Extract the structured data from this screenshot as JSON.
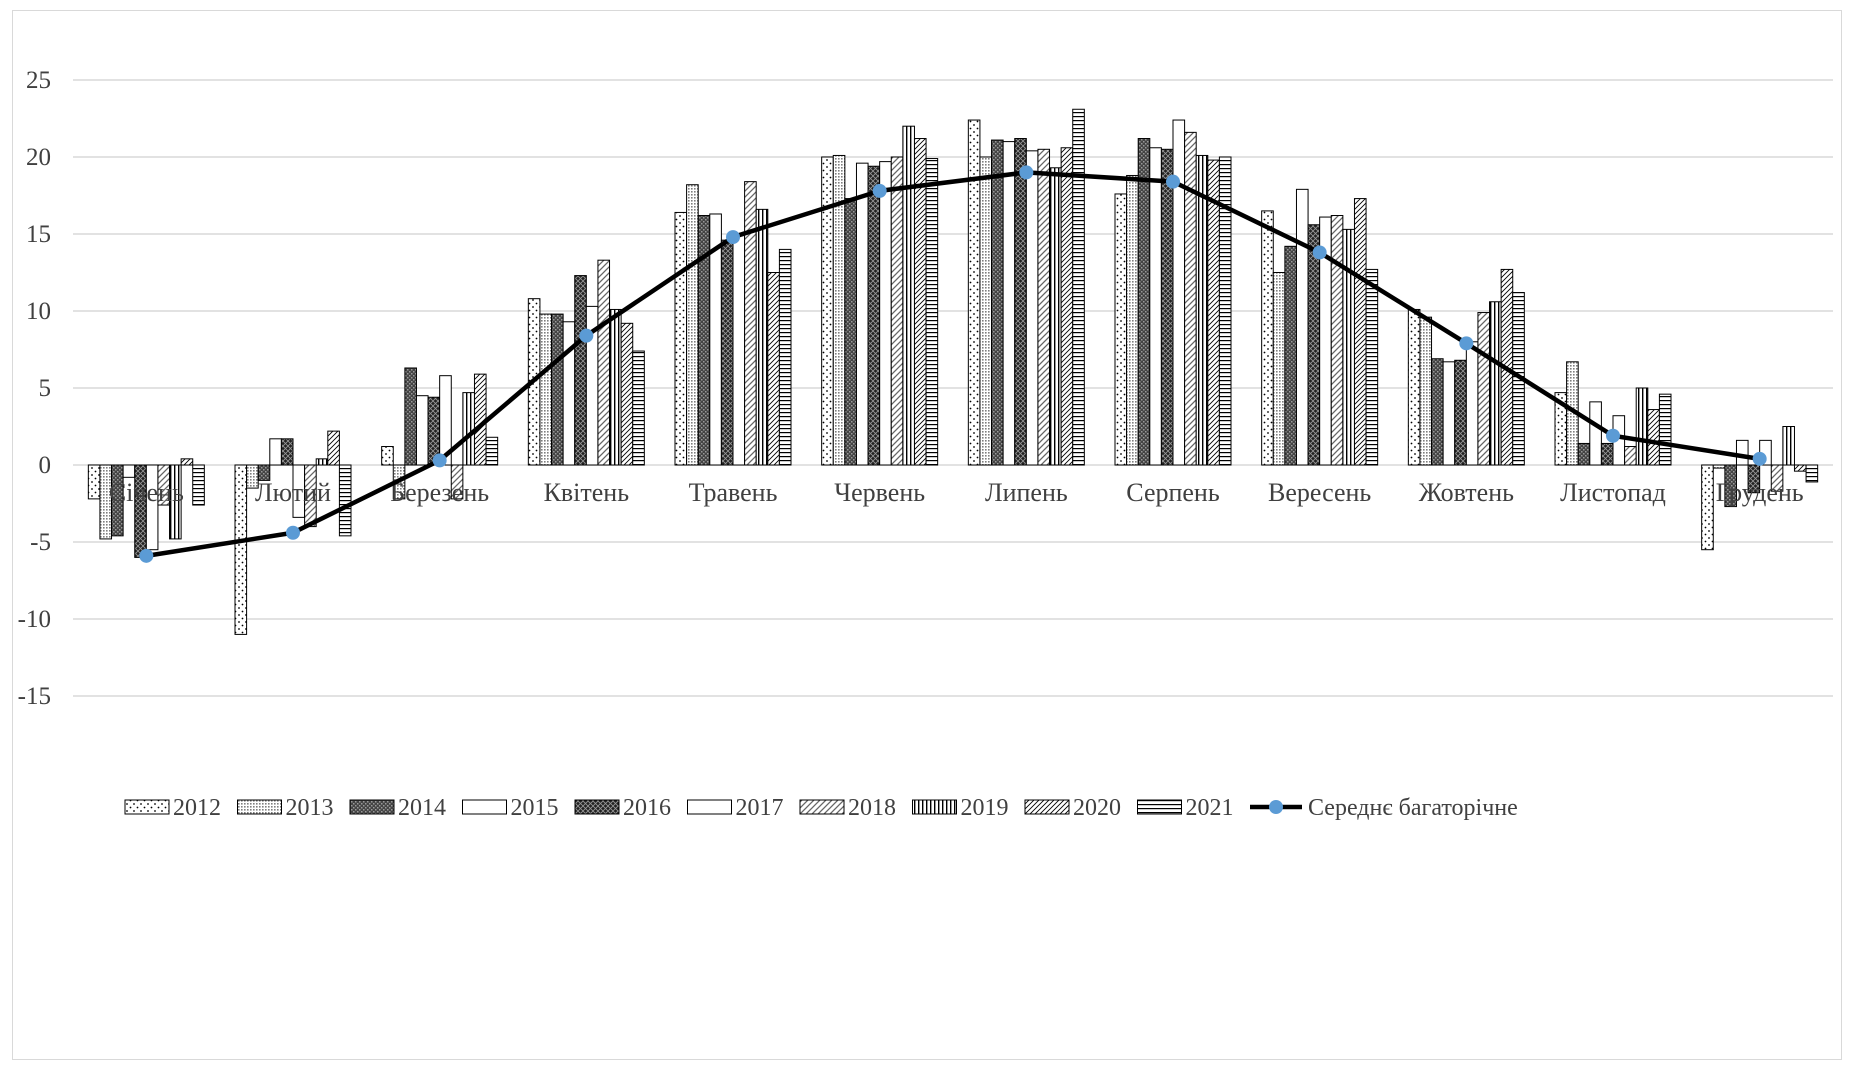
{
  "chart_data": {
    "type": "bar",
    "title": "",
    "xlabel": "",
    "ylabel": "",
    "ylim": [
      -15,
      25
    ],
    "y_ticks": [
      "25",
      "20",
      "15",
      "10",
      "5",
      "0",
      "-5",
      "-10",
      "-15"
    ],
    "grid": true,
    "legend_position": "bottom",
    "categories": [
      "Січень",
      "Лютий",
      "Березень",
      "Квітень",
      "Травень",
      "Червень",
      "Липень",
      "Серпень",
      "Вересень",
      "Жовтень",
      "Листопад",
      "Грудень"
    ],
    "series": [
      {
        "name": "2012",
        "pattern": "dots",
        "values": [
          -2.2,
          -11.0,
          1.2,
          10.8,
          16.4,
          20.0,
          22.4,
          17.6,
          16.5,
          10.1,
          4.7,
          -5.5
        ]
      },
      {
        "name": "2013",
        "pattern": "fine",
        "values": [
          -4.8,
          -1.5,
          -2.2,
          9.8,
          18.2,
          20.1,
          20.0,
          18.8,
          12.5,
          9.6,
          6.7,
          -0.2
        ]
      },
      {
        "name": "2014",
        "pattern": "dark",
        "values": [
          -4.6,
          -1.0,
          6.3,
          9.8,
          16.2,
          17.3,
          21.1,
          21.2,
          14.2,
          6.9,
          1.4,
          -2.7
        ]
      },
      {
        "name": "2015",
        "pattern": "white",
        "values": [
          -0.8,
          1.7,
          4.5,
          9.3,
          16.3,
          19.6,
          21.0,
          20.6,
          17.9,
          6.7,
          4.1,
          1.6
        ]
      },
      {
        "name": "2016",
        "pattern": "cross",
        "values": [
          -6.0,
          1.7,
          4.4,
          12.3,
          14.6,
          19.4,
          21.2,
          20.5,
          15.6,
          6.8,
          1.4,
          -1.8
        ]
      },
      {
        "name": "2017",
        "pattern": "white",
        "values": [
          -5.5,
          -3.4,
          5.8,
          10.3,
          14.9,
          19.7,
          20.4,
          22.4,
          16.1,
          8.0,
          3.2,
          1.6
        ]
      },
      {
        "name": "2018",
        "pattern": "diag",
        "values": [
          -2.6,
          -4.0,
          -2.2,
          13.3,
          18.4,
          20.0,
          20.5,
          21.6,
          16.2,
          9.9,
          1.2,
          -1.7
        ]
      },
      {
        "name": "2019",
        "pattern": "vlines",
        "values": [
          -4.8,
          0.4,
          4.7,
          10.1,
          16.6,
          22.0,
          19.3,
          20.1,
          15.3,
          10.6,
          5.0,
          2.5
        ]
      },
      {
        "name": "2020",
        "pattern": "hatch",
        "values": [
          0.4,
          2.2,
          5.9,
          9.2,
          12.5,
          21.2,
          20.6,
          19.8,
          17.3,
          12.7,
          3.6,
          -0.4
        ]
      },
      {
        "name": "2021",
        "pattern": "hlines",
        "values": [
          -2.6,
          -4.6,
          1.8,
          7.4,
          14.0,
          19.9,
          23.1,
          20.0,
          12.7,
          11.2,
          4.6,
          -1.1
        ]
      }
    ],
    "line": {
      "name": "Середнє багаторічне",
      "values": [
        -5.9,
        -4.4,
        0.3,
        8.4,
        14.8,
        17.8,
        19.0,
        18.4,
        13.8,
        7.9,
        1.9,
        0.4
      ]
    },
    "colors": {
      "line": "#000000",
      "marker": "#5b9bd5",
      "grid": "#d9d9d9",
      "text": "#404040"
    }
  }
}
